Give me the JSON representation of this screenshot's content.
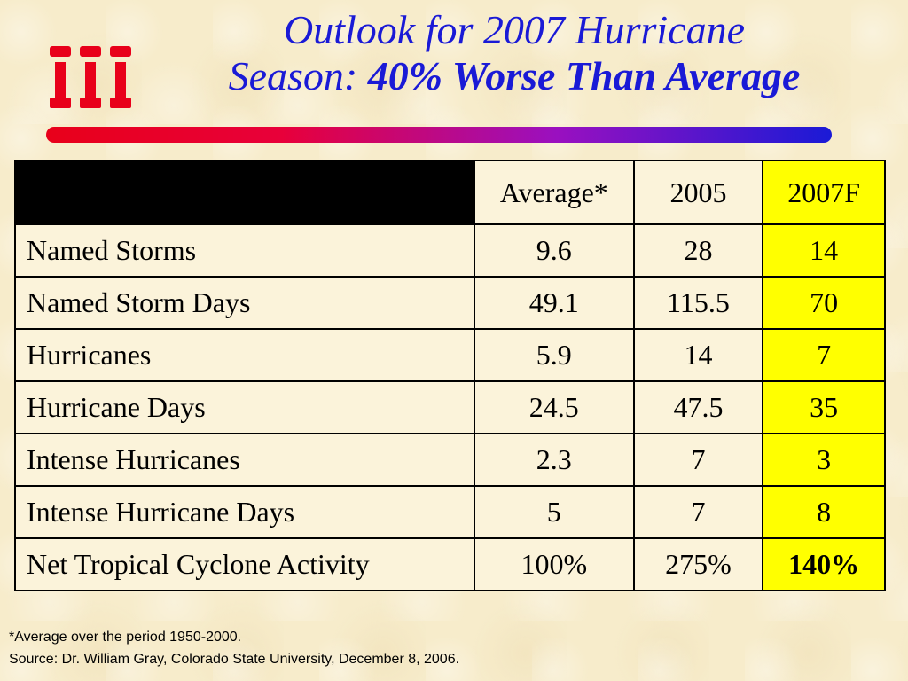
{
  "title": {
    "line1": "Outlook for 2007 Hurricane",
    "line2_prefix": "Season: ",
    "line2_bold": "40% Worse Than Average"
  },
  "logo": {
    "name": "iii-logo-icon",
    "color": "#e8001a"
  },
  "table": {
    "headers": [
      "",
      "Average*",
      "2005",
      "2007F"
    ],
    "rows": [
      {
        "label": "Named Storms",
        "avg": "9.6",
        "y2005": "28",
        "y2007": "14"
      },
      {
        "label": "Named Storm Days",
        "avg": "49.1",
        "y2005": "115.5",
        "y2007": "70"
      },
      {
        "label": "Hurricanes",
        "avg": "5.9",
        "y2005": "14",
        "y2007": "7"
      },
      {
        "label": "Hurricane Days",
        "avg": "24.5",
        "y2005": "47.5",
        "y2007": "35"
      },
      {
        "label": "Intense Hurricanes",
        "avg": "2.3",
        "y2005": "7",
        "y2007": "3"
      },
      {
        "label": "Intense Hurricane Days",
        "avg": "5",
        "y2005": "7",
        "y2007": "8"
      },
      {
        "label": "Net Tropical Cyclone Activity",
        "avg": "100%",
        "y2005": "275%",
        "y2007": "140%"
      }
    ],
    "highlight_color": "#ffff00"
  },
  "notes": {
    "footnote": "*Average over the period 1950-2000.",
    "source": "Source: Dr. William Gray, Colorado State University, December 8, 2006."
  },
  "colors": {
    "title": "#1a1ad6",
    "background": "#f7eccb",
    "rule_start": "#e8001a",
    "rule_end": "#1a1ad6"
  }
}
